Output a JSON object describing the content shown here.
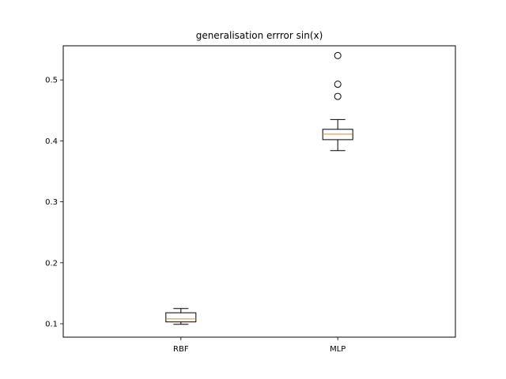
{
  "chart_data": {
    "type": "box",
    "title": "generalisation errror sin(x)",
    "xlabel": "",
    "ylabel": "",
    "ylim": [
      0.078,
      0.556
    ],
    "yticks": [
      0.1,
      0.2,
      0.3,
      0.4,
      0.5
    ],
    "ytick_labels": [
      "0.1",
      "0.2",
      "0.3",
      "0.4",
      "0.5"
    ],
    "categories": [
      "RBF",
      "MLP"
    ],
    "boxes": [
      {
        "label": "RBF",
        "whisker_low": 0.099,
        "q1": 0.103,
        "median": 0.108,
        "q3": 0.118,
        "whisker_high": 0.125,
        "outliers": []
      },
      {
        "label": "MLP",
        "whisker_low": 0.384,
        "q1": 0.402,
        "median": 0.411,
        "q3": 0.419,
        "whisker_high": 0.435,
        "outliers": [
          0.473,
          0.493,
          0.54
        ]
      }
    ],
    "grid": false,
    "colors": {
      "box": "#000000",
      "median": "#ff7f0e",
      "background": "#ffffff"
    }
  }
}
